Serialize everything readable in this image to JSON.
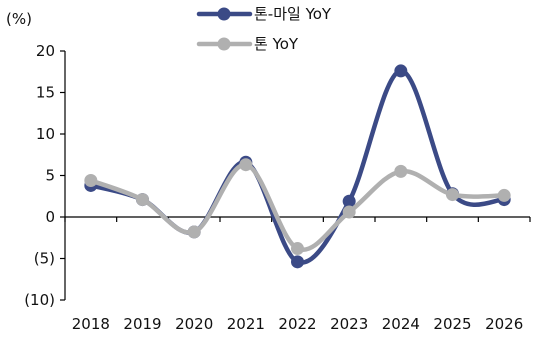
{
  "chart_data": {
    "type": "line",
    "unit_label": "(%)",
    "x": [
      "2018",
      "2019",
      "2020",
      "2021",
      "2022",
      "2023",
      "2024",
      "2025",
      "2026"
    ],
    "yticks": [
      "20",
      "15",
      "10",
      "5",
      "0",
      "(5)",
      "(10)"
    ],
    "ytick_values": [
      20,
      15,
      10,
      5,
      0,
      -5,
      -10
    ],
    "ylim": [
      -10,
      20
    ],
    "grid": false,
    "legend_position": "top",
    "series": [
      {
        "name": "톤-마일 YoY",
        "color": "#3b4a86",
        "values": [
          3.8,
          2.1,
          -1.8,
          6.6,
          -5.4,
          1.9,
          17.6,
          2.8,
          2.1
        ]
      },
      {
        "name": "톤 YoY",
        "color": "#b0b0b0",
        "values": [
          4.4,
          2.1,
          -1.8,
          6.3,
          -3.8,
          0.6,
          5.5,
          2.7,
          2.6
        ]
      }
    ]
  }
}
